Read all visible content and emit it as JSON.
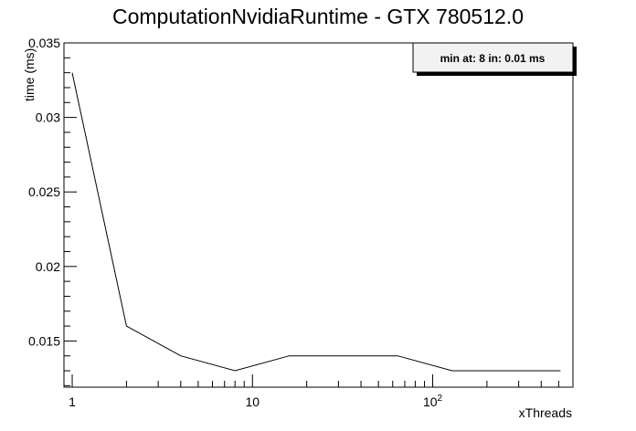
{
  "chart_data": {
    "type": "line",
    "title": "ComputationNvidiaRuntime - GTX 780512.0",
    "xlabel": "xThreads",
    "ylabel": "time (ms)",
    "x_scale": "log",
    "xlim": [
      0.9,
      600
    ],
    "ylim": [
      0.0119,
      0.035
    ],
    "x_ticks": [
      {
        "value": 1,
        "label": "1"
      },
      {
        "value": 10,
        "label": "10"
      },
      {
        "value": 100,
        "label": "10",
        "exp": "2"
      }
    ],
    "y_ticks": [
      {
        "value": 0.015,
        "label": "0.015"
      },
      {
        "value": 0.02,
        "label": "0.02"
      },
      {
        "value": 0.025,
        "label": "0.025"
      },
      {
        "value": 0.03,
        "label": "0.03"
      },
      {
        "value": 0.035,
        "label": "0.035"
      }
    ],
    "grid": false,
    "legend": {
      "text": "min at: 8 in: 0.01 ms",
      "placement": "top-right"
    },
    "series": [
      {
        "x": [
          1,
          2,
          4,
          8,
          16,
          32,
          64,
          128,
          256,
          512
        ],
        "values": [
          0.033,
          0.016,
          0.014,
          0.013,
          0.014,
          0.014,
          0.014,
          0.013,
          0.013,
          0.013
        ]
      }
    ]
  }
}
